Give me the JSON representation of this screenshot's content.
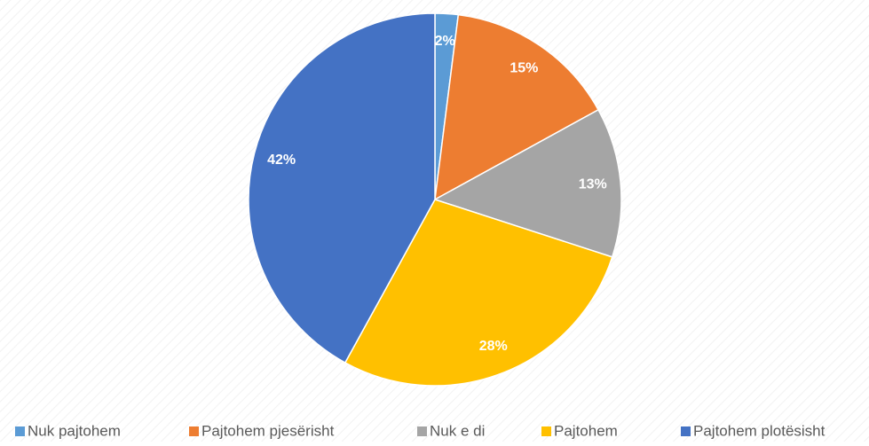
{
  "chart_data": {
    "type": "pie",
    "categories": [
      "Nuk pajtohem",
      "Pajtohem pjesërisht",
      "Nuk e di",
      "Pajtohem",
      "Pajtohem plotësisht"
    ],
    "values": [
      2,
      15,
      13,
      28,
      42
    ],
    "value_labels": [
      "2%",
      "15%",
      "13%",
      "28%",
      "42%"
    ],
    "colors": [
      "#5b9bd5",
      "#ed7d31",
      "#a5a5a5",
      "#ffc000",
      "#4472c4"
    ],
    "legend": "bottom"
  }
}
